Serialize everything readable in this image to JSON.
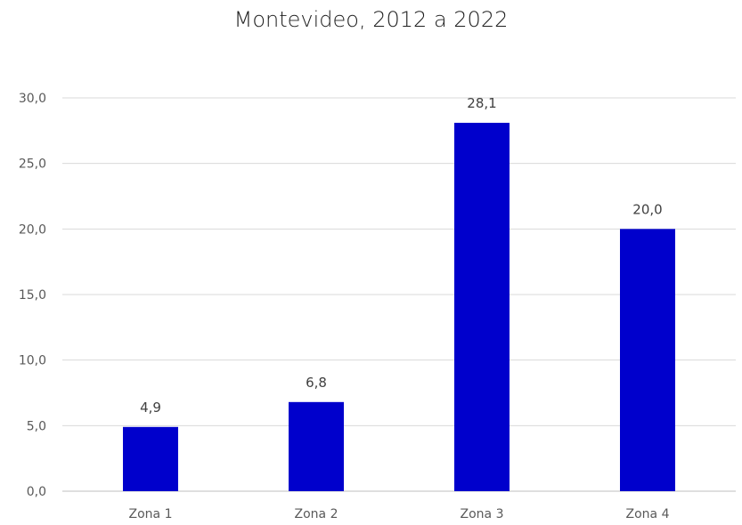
{
  "chart_data": {
    "type": "bar",
    "title": "Montevideo, 2012 a 2022",
    "categories": [
      "Zona 1",
      "Zona 2",
      "Zona 3",
      "Zona 4"
    ],
    "values": [
      4.9,
      6.8,
      28.1,
      20.0
    ],
    "value_labels": [
      "4,9",
      "6,8",
      "28,1",
      "20,0"
    ],
    "ylim": [
      0,
      30
    ],
    "yticks": [
      0,
      5,
      10,
      15,
      20,
      25,
      30
    ],
    "ytick_labels": [
      "0,0",
      "5,0",
      "10,0",
      "15,0",
      "20,0",
      "25,0",
      "30,0"
    ],
    "xlabel": "",
    "ylabel": "",
    "grid": true,
    "bar_color": "#0000CC",
    "grid_color": "#D9D9D9"
  }
}
